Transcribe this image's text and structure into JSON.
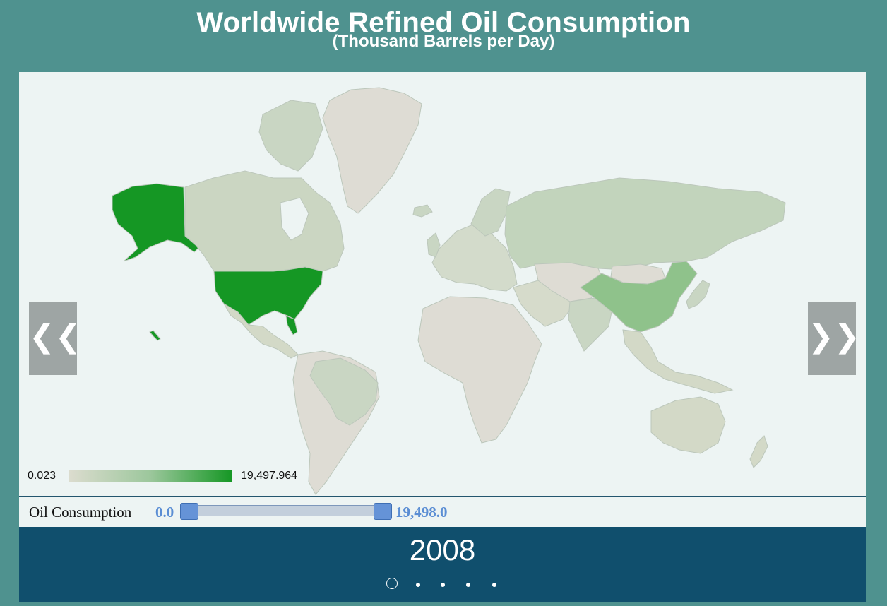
{
  "header": {
    "title": "Worldwide Refined Oil Consumption",
    "subtitle": "(Thousand Barrels per Day)"
  },
  "map": {
    "type": "choropleth",
    "metric": "Oil Consumption",
    "legend": {
      "min_label": "0.023",
      "max_label": "19,497.964"
    },
    "colors": {
      "low": "#dcdccf",
      "mid": "#9cc79c",
      "high": "#159724",
      "background": "#edf4f3",
      "border": "#bfc8bf"
    },
    "highlighted_regions": [
      {
        "name": "United States",
        "level": "high"
      },
      {
        "name": "China",
        "level": "mid"
      },
      {
        "name": "Russia",
        "level": "low-mid"
      },
      {
        "name": "Canada",
        "level": "low-mid"
      },
      {
        "name": "Brazil",
        "level": "low-mid"
      },
      {
        "name": "India",
        "level": "low-mid"
      }
    ]
  },
  "carousel": {
    "prev_glyph": "❮❮",
    "next_glyph": "❯❯",
    "year": "2008",
    "slide_count": 5,
    "active_index": 0
  },
  "filter": {
    "label": "Oil Consumption",
    "min_value": "0.0",
    "max_value": "19,498.0"
  }
}
